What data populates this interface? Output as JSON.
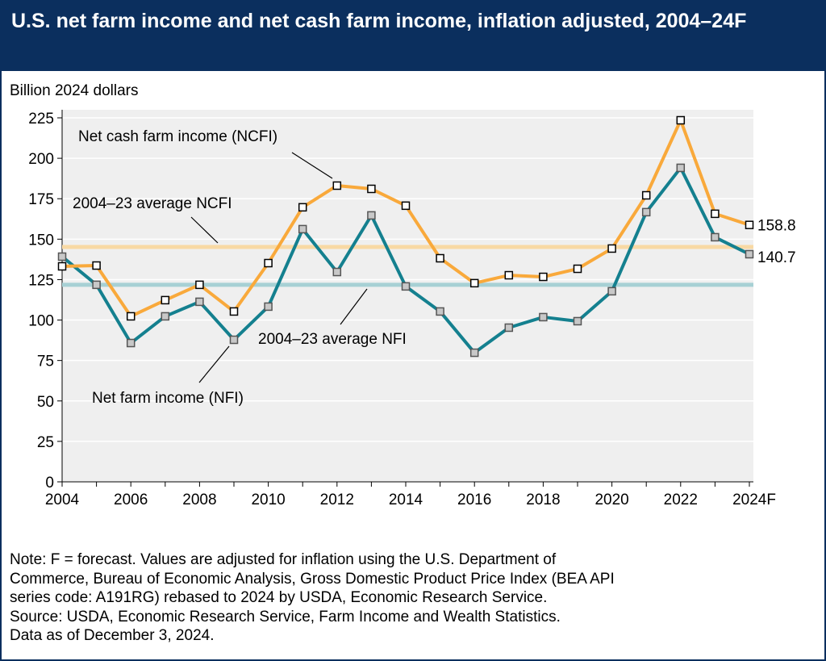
{
  "title": "U.S. net farm income and net cash farm income, inflation adjusted, 2004–24F",
  "note": [
    "Note: F = forecast. Values are adjusted for inflation using the U.S. Department of",
    "Commerce, Bureau of Economic Analysis, Gross Domestic Product Price Index (BEA API",
    "series code: A191RG) rebased to 2024 by USDA, Economic Research Service.",
    "Source: USDA, Economic Research Service, Farm Income and Wealth Statistics.",
    "Data as of December 3, 2024."
  ],
  "chart_data": {
    "type": "line",
    "title": "U.S. net farm income and net cash farm income, inflation adjusted, 2004–24F",
    "ylabel": "Billion 2024 dollars",
    "ylim": [
      0,
      225
    ],
    "yticks": [
      "0",
      "25",
      "50",
      "75",
      "100",
      "125",
      "150",
      "175",
      "200",
      "225"
    ],
    "x": [
      2004,
      2005,
      2006,
      2007,
      2008,
      2009,
      2010,
      2011,
      2012,
      2013,
      2014,
      2015,
      2016,
      2017,
      2018,
      2019,
      2020,
      2021,
      2022,
      2023,
      2024
    ],
    "xticks": [
      "2004",
      "2006",
      "2008",
      "2010",
      "2012",
      "2014",
      "2016",
      "2018",
      "2020",
      "2022",
      "2024F"
    ],
    "grid": true,
    "series": [
      {
        "name": "Net cash farm income (NCFI)",
        "color": "#f9a93b",
        "values": [
          133.2,
          133.7,
          102.3,
          112.3,
          121.8,
          105.3,
          135.2,
          169.7,
          183.1,
          181.1,
          170.7,
          138.2,
          122.8,
          127.7,
          126.7,
          131.7,
          144.2,
          177.1,
          223.5,
          165.7,
          158.8
        ],
        "end_label": "158.8"
      },
      {
        "name": "Net farm income (NFI)",
        "color": "#14808f",
        "values": [
          139.2,
          121.8,
          85.8,
          102.3,
          111.3,
          87.8,
          108.3,
          156.2,
          129.7,
          164.7,
          120.8,
          105.3,
          79.8,
          95.3,
          101.8,
          99.3,
          117.8,
          166.7,
          194.1,
          151.2,
          140.7
        ],
        "end_label": "140.7"
      }
    ],
    "reference_lines": [
      {
        "name": "2004–23 average NCFI",
        "value": 145.2,
        "color": "#f8d9a4"
      },
      {
        "name": "2004–23 average NFI",
        "value": 121.8,
        "color": "#a7d0d4"
      }
    ]
  }
}
